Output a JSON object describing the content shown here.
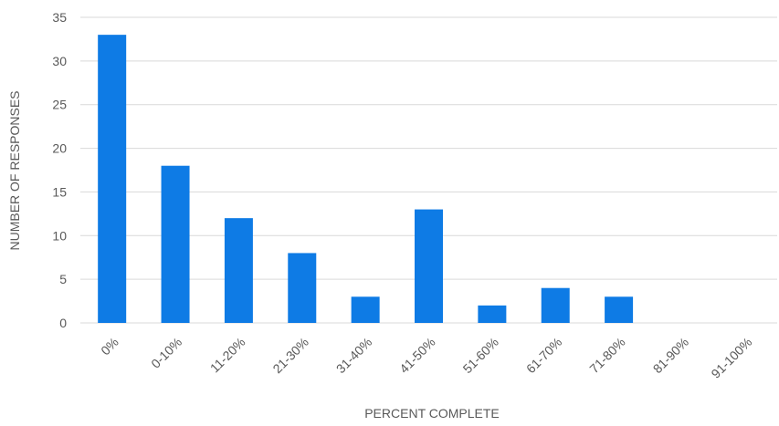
{
  "chart_data": {
    "type": "bar",
    "title": "",
    "xlabel": "PERCENT COMPLETE",
    "ylabel": "NUMBER OF RESPONSES",
    "categories": [
      "0%",
      "0-10%",
      "11-20%",
      "21-30%",
      "31-40%",
      "41-50%",
      "51-60%",
      "61-70%",
      "71-80%",
      "81-90%",
      "91-100%"
    ],
    "values": [
      33,
      18,
      12,
      8,
      3,
      13,
      2,
      4,
      3,
      0,
      0
    ],
    "ylim": [
      0,
      35
    ],
    "yticks": [
      "0",
      "5",
      "10",
      "15",
      "20",
      "25",
      "30",
      "35"
    ],
    "grid": true,
    "legend": "none",
    "bar_color": "#0E7BE5",
    "grid_color": "#D9D9D9",
    "text_color": "#595959"
  }
}
